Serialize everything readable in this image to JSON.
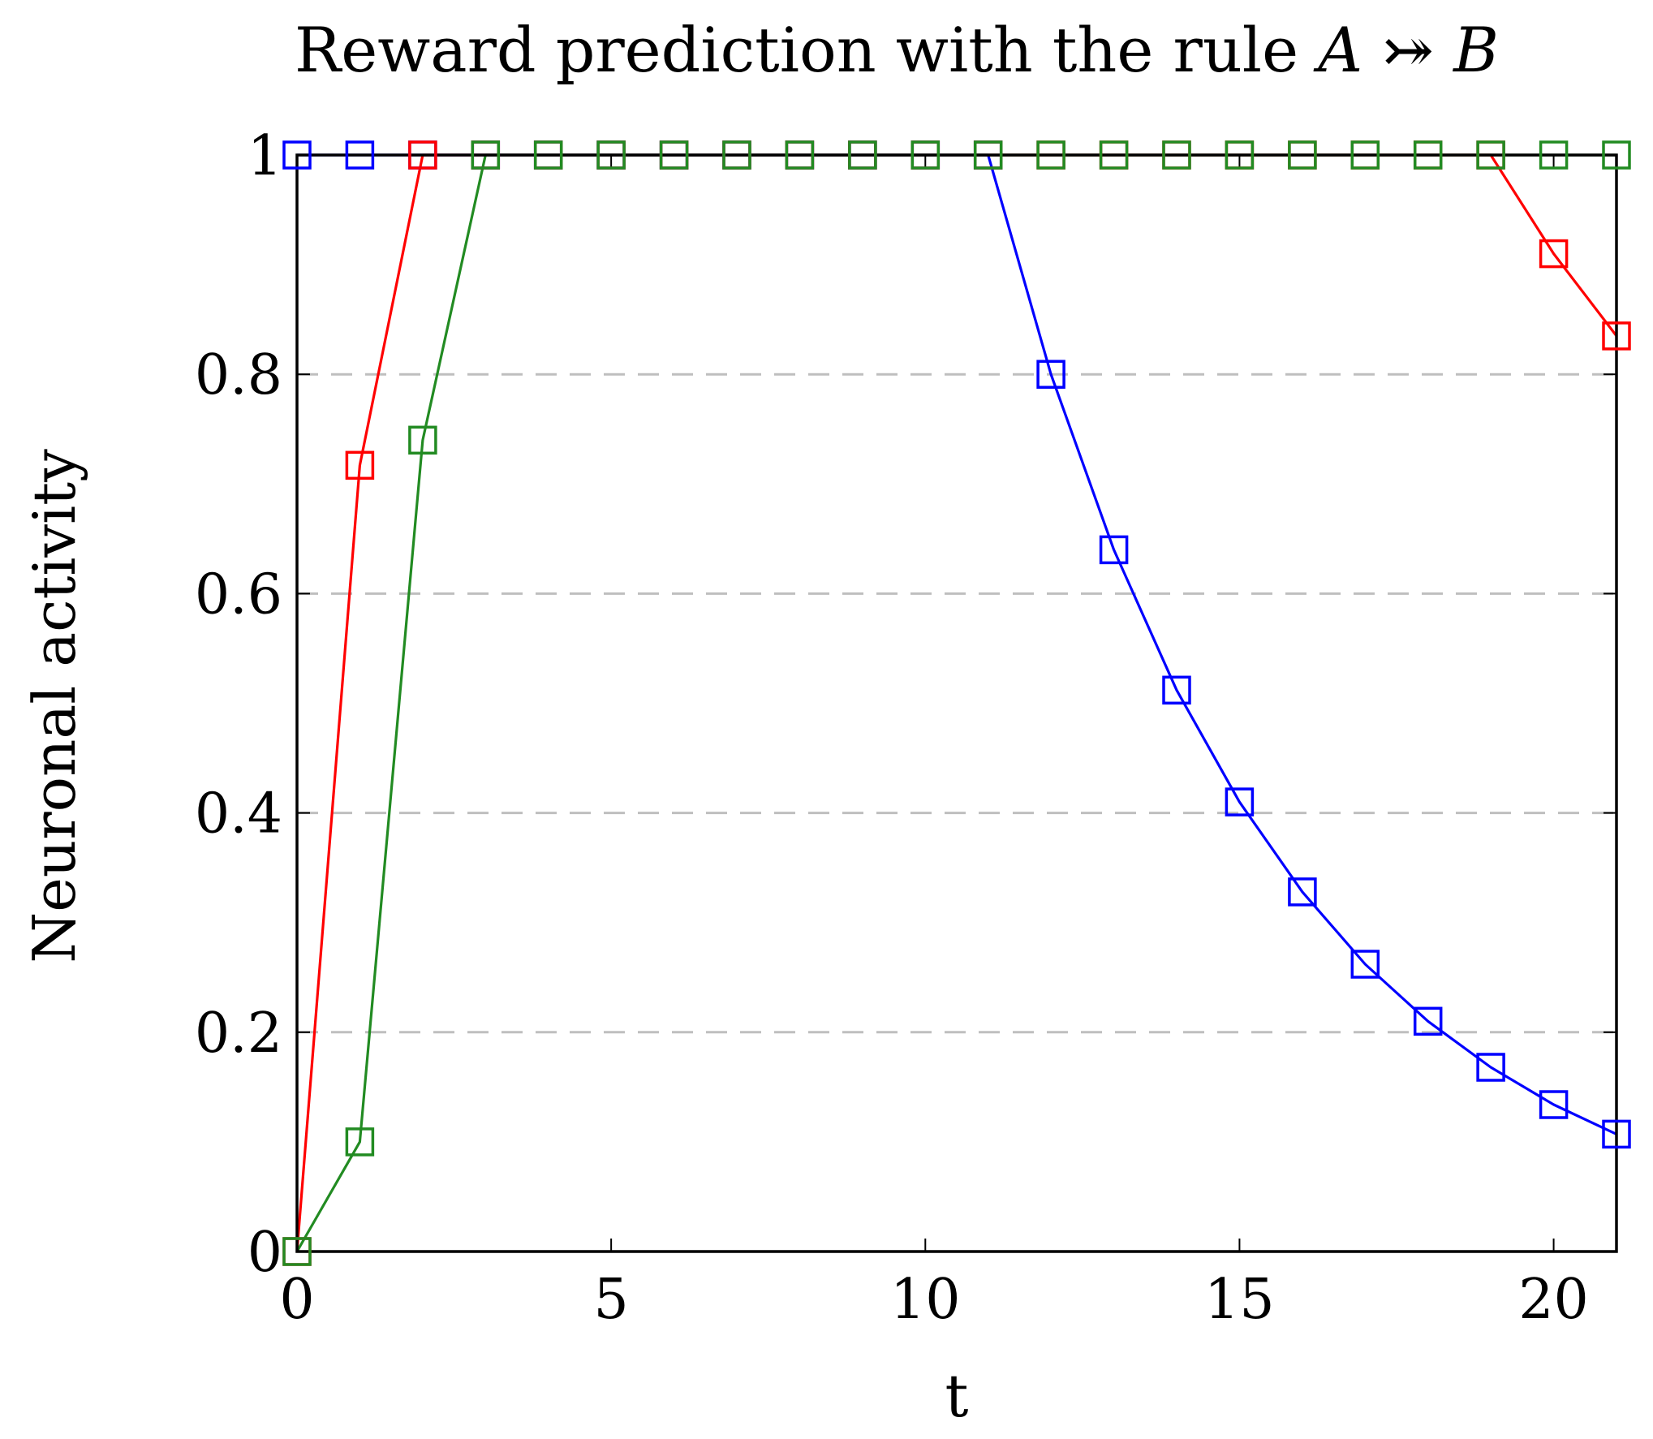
{
  "chart_data": {
    "type": "line",
    "title": "Reward prediction with the rule A ⤖ B",
    "title_main": "Reward prediction with the rule ",
    "title_math": "A ⤖ B",
    "xlabel": "t",
    "ylabel": "Neuronal activity",
    "xlim": [
      0,
      21
    ],
    "ylim": [
      0,
      1
    ],
    "xticks": [
      0,
      5,
      10,
      15,
      20
    ],
    "yticks": [
      0,
      0.2,
      0.4,
      0.6,
      0.8,
      1
    ],
    "ytick_labels": [
      "0",
      "0.2",
      "0.4",
      "0.6",
      "0.8",
      "1"
    ],
    "grid": "horizontal dashed",
    "marker": "open square",
    "x": [
      0,
      1,
      2,
      3,
      4,
      5,
      6,
      7,
      8,
      9,
      10,
      11,
      12,
      13,
      14,
      15,
      16,
      17,
      18,
      19,
      20,
      21
    ],
    "series": [
      {
        "color": "#0000ff",
        "values": [
          1,
          1,
          1,
          1,
          1,
          1,
          1,
          1,
          1,
          1,
          1,
          1,
          0.8,
          0.64,
          0.512,
          0.41,
          0.328,
          0.262,
          0.21,
          0.168,
          0.134,
          0.107
        ]
      },
      {
        "color": "#ff0000",
        "values": [
          0,
          0.717,
          1,
          1,
          1,
          1,
          1,
          1,
          1,
          1,
          1,
          1,
          1,
          1,
          1,
          1,
          1,
          1,
          1,
          1,
          0.91,
          0.835
        ]
      },
      {
        "color": "#228b22",
        "values": [
          0,
          0.1,
          0.74,
          1,
          1,
          1,
          1,
          1,
          1,
          1,
          1,
          1,
          1,
          1,
          1,
          1,
          1,
          1,
          1,
          1,
          1,
          1
        ]
      }
    ]
  }
}
